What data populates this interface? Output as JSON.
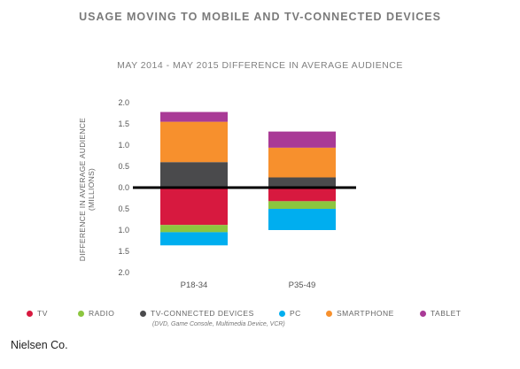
{
  "chart_data": {
    "type": "bar",
    "stacked": true,
    "title": "USAGE MOVING TO MOBILE AND TV-CONNECTED DEVICES",
    "subtitle": "MAY 2014 - MAY 2015 DIFFERENCE IN AVERAGE AUDIENCE",
    "ylabel": "DIFFERENCE IN AVERAGE AUDIENCE",
    "ylabel_sub": "(MILLIONS)",
    "categories": [
      "P18-34",
      "P35-49"
    ],
    "ylim": [
      -2.0,
      2.0
    ],
    "yticks": [
      2.0,
      1.5,
      1.0,
      0.5,
      0.0,
      -0.5,
      -1.0,
      -1.5,
      -2.0
    ],
    "ytick_labels": [
      "2.0",
      "1.5",
      "1.0",
      "0.5",
      "0.0",
      "0.5",
      "1.0",
      "1.5",
      "2.0"
    ],
    "grid": false,
    "legend_position": "bottom",
    "series": [
      {
        "name": "TV",
        "color": "#d7193f",
        "values": [
          -0.88,
          -0.32
        ]
      },
      {
        "name": "RADIO",
        "color": "#8cc63f",
        "values": [
          -0.17,
          -0.18
        ]
      },
      {
        "name": "TV-CONNECTED DEVICES",
        "note": "(DVD, Game Console, Multimedia Device, VCR)",
        "color": "#4a4a4c",
        "values": [
          0.6,
          0.24
        ]
      },
      {
        "name": "PC",
        "color": "#00aeef",
        "values": [
          -0.31,
          -0.5
        ]
      },
      {
        "name": "SMARTPHONE",
        "color": "#f7902d",
        "values": [
          0.95,
          0.7
        ]
      },
      {
        "name": "TABLET",
        "color": "#a93a96",
        "values": [
          0.23,
          0.38
        ]
      }
    ]
  },
  "source": "Nielsen Co."
}
